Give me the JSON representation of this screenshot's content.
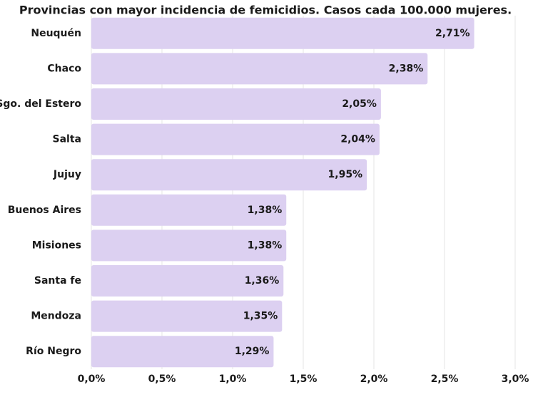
{
  "chart_data": {
    "type": "bar",
    "orientation": "horizontal",
    "title": "Provincias con mayor incidencia de femicidios. Casos cada 100.000 mujeres.",
    "categories": [
      "Neuquén",
      "Chaco",
      "Sgo. del Estero",
      "Salta",
      "Jujuy",
      "Buenos Aires",
      "Misiones",
      "Santa fe",
      "Mendoza",
      "Río Negro"
    ],
    "values": [
      2.71,
      2.38,
      2.05,
      2.04,
      1.95,
      1.38,
      1.38,
      1.36,
      1.35,
      1.29
    ],
    "value_labels": [
      "2,71%",
      "2,38%",
      "2,05%",
      "2,04%",
      "1,95%",
      "1,38%",
      "1,38%",
      "1,36%",
      "1,35%",
      "1,29%"
    ],
    "color": "#dcd0f1",
    "xlim": [
      0,
      3
    ],
    "xticks": [
      {
        "value": 0,
        "label": "0,0%"
      },
      {
        "value": 0.5,
        "label": "0,5%"
      },
      {
        "value": 1,
        "label": "1,0%"
      },
      {
        "value": 1.5,
        "label": "1,5%"
      },
      {
        "value": 2,
        "label": "2,0%"
      },
      {
        "value": 2.5,
        "label": "2,5%"
      },
      {
        "value": 3,
        "label": "3,0%"
      }
    ],
    "grid": true
  }
}
